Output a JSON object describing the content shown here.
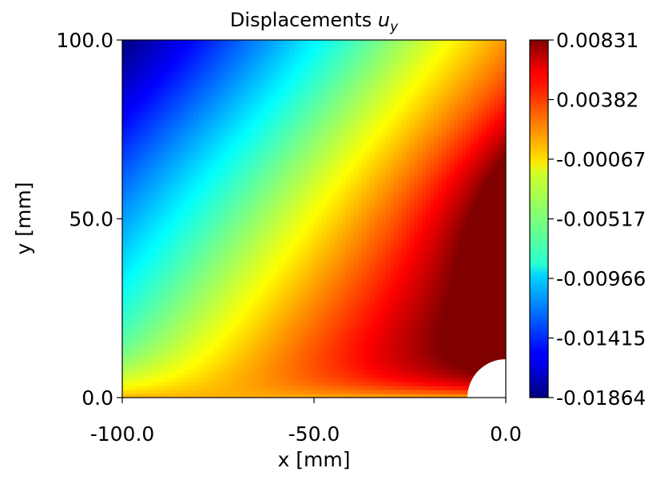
{
  "chart_data": {
    "type": "heatmap",
    "title_main": "Displacements ",
    "title_var": "u",
    "title_sub": "y",
    "xlabel": "x [mm]",
    "ylabel": "y [mm]",
    "xlim": [
      -100,
      0
    ],
    "ylim": [
      0,
      100
    ],
    "xticks": [
      -100,
      -50,
      0
    ],
    "xtick_labels": [
      "-100.0",
      "-50.0",
      "0.0"
    ],
    "yticks": [
      0,
      50,
      100
    ],
    "ytick_labels": [
      "0.0",
      "50.0",
      "100.0"
    ],
    "hole": {
      "center_x": 0,
      "center_y": 0,
      "radius": 10
    },
    "colormap": "jet",
    "colorbar": {
      "min": -0.01864,
      "max": 0.00831,
      "ticks": [
        0.00831,
        0.00382,
        -0.00067,
        -0.00517,
        -0.00966,
        -0.01415,
        -0.01864
      ],
      "tick_labels": [
        "0.00831",
        "0.00382",
        "-0.00067",
        "-0.00517",
        "-0.00966",
        "-0.01415",
        "-0.01864"
      ]
    },
    "field_samples": [
      {
        "x": -100,
        "y": 100,
        "value": -0.0186
      },
      {
        "x": -50,
        "y": 100,
        "value": -0.008
      },
      {
        "x": 0,
        "y": 100,
        "value": -0.001
      },
      {
        "x": -100,
        "y": 50,
        "value": -0.012
      },
      {
        "x": -50,
        "y": 50,
        "value": -0.003
      },
      {
        "x": 0,
        "y": 50,
        "value": 0.0083
      },
      {
        "x": -100,
        "y": 0,
        "value": -0.0005
      },
      {
        "x": -50,
        "y": 0,
        "value": 0.0005
      },
      {
        "x": 0,
        "y": 20,
        "value": 0.004
      }
    ],
    "grid": false
  }
}
